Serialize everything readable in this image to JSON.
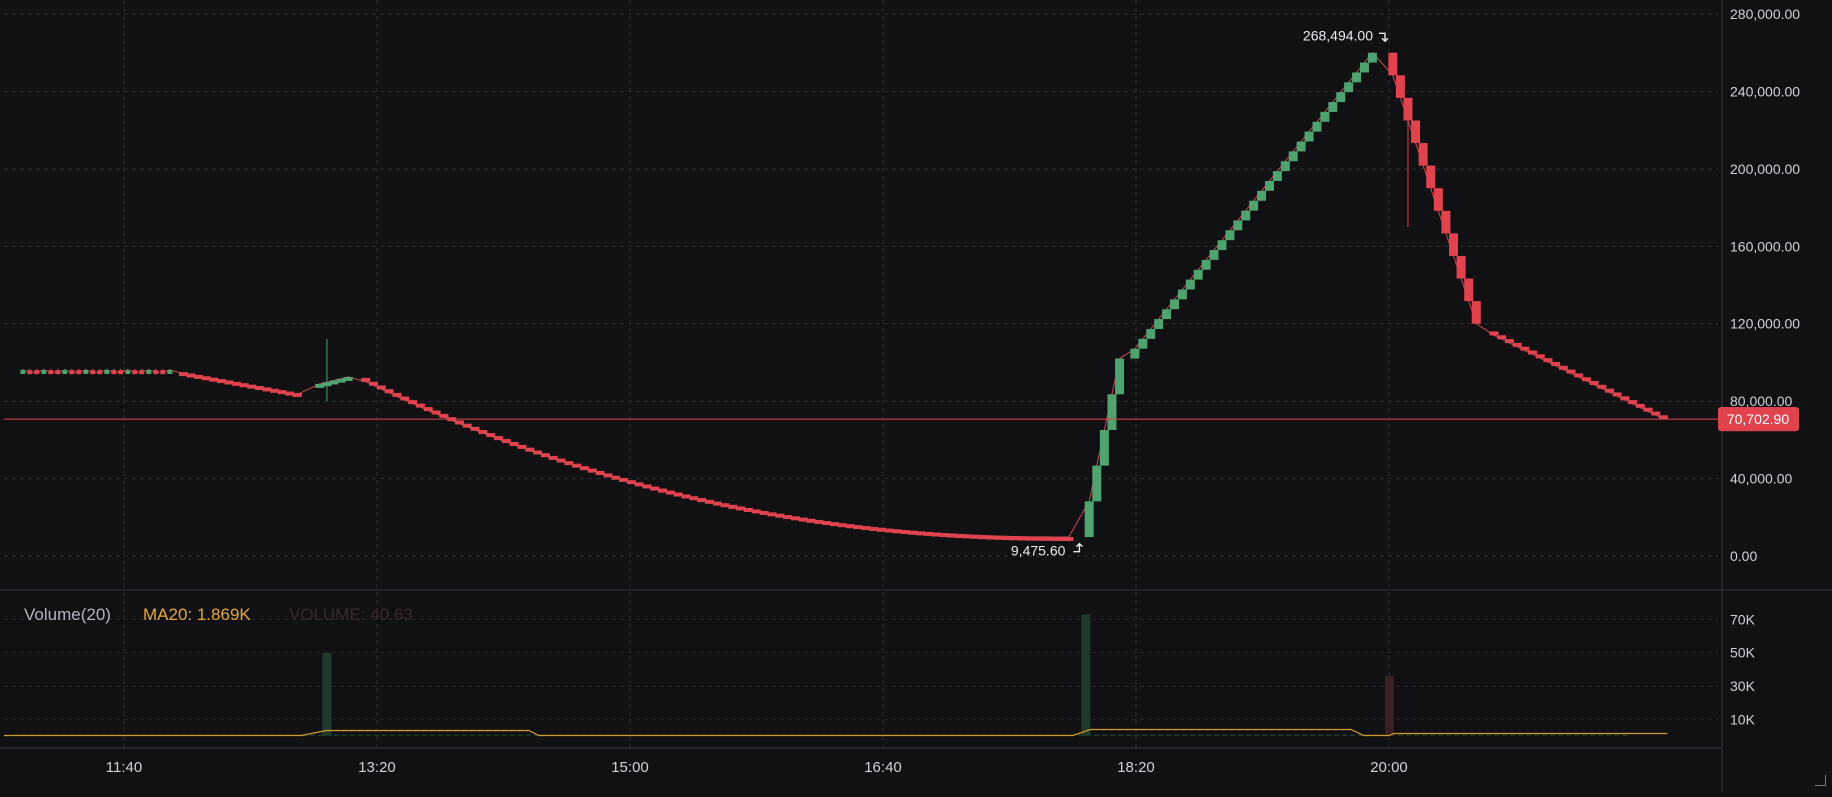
{
  "chart_data": {
    "type": "candlestick",
    "x_tick_labels": [
      "11:40",
      "13:20",
      "15:00",
      "16:40",
      "18:20",
      "20:00"
    ],
    "price_axis": {
      "ticks": [
        "280,000.00",
        "240,000.00",
        "200,000.00",
        "160,000.00",
        "120,000.00",
        "80,000.00",
        "40,000.00",
        "0.00"
      ],
      "ylim": [
        0,
        280000
      ]
    },
    "last_price": {
      "value": 70702.9,
      "label": "70,702.90"
    },
    "high_marker": {
      "value": 268494,
      "label": "268,494.00"
    },
    "low_marker": {
      "value": 9475.6,
      "label": "9,475.60"
    },
    "volume_pane": {
      "title": "Volume(20)",
      "ma_label": "MA20: 1.869K",
      "volume_label": "VOLUME: 40.63",
      "ticks": [
        "70K",
        "50K",
        "30K",
        "10K"
      ],
      "spikes_k": [
        {
          "time": "13:00",
          "value": 50,
          "dir": "up"
        },
        {
          "time": "18:00",
          "value": 73,
          "dir": "up"
        },
        {
          "time": "20:00",
          "value": 36,
          "dir": "down"
        }
      ]
    },
    "flat_segment": {
      "start": "11:00",
      "end": "12:00",
      "value": 95500
    },
    "segments": [
      {
        "start": "12:02",
        "end": "12:50",
        "from": 95000,
        "to": 83500
      },
      {
        "start": "12:56",
        "end": "13:10",
        "from": 88000,
        "to": 92500
      },
      {
        "start": "13:14",
        "end": "17:55",
        "from": 92000,
        "to": 9800
      },
      {
        "start": "18:00",
        "end": "18:15",
        "from": 9800,
        "to": 102000
      },
      {
        "start": "18:18",
        "end": "19:55",
        "from": 102000,
        "to": 260000
      },
      {
        "start": "20:00",
        "end": "20:36",
        "from": 260000,
        "to": 120000
      },
      {
        "start": "20:40",
        "end": "21:50",
        "from": 116000,
        "to": 70700
      }
    ],
    "wick_events": [
      {
        "time": "13:00",
        "high": 112000,
        "low": 80000
      },
      {
        "time": "20:08",
        "high": 190000,
        "low": 170000
      }
    ]
  }
}
